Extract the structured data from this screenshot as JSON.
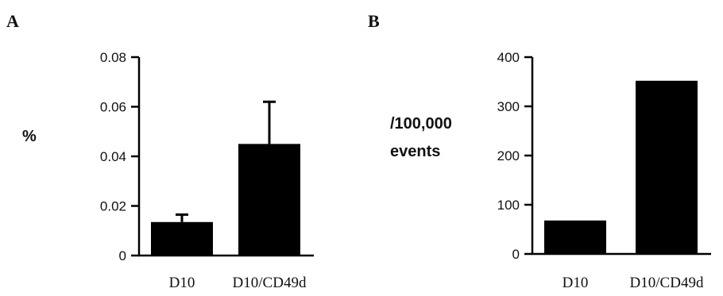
{
  "chart_data": [
    {
      "panel": "A",
      "type": "bar",
      "categories": [
        "D10",
        "D10/CD49d"
      ],
      "values": [
        0.0135,
        0.045
      ],
      "error_upper": [
        0.0165,
        0.062
      ],
      "ylabel": "%",
      "ylim": [
        0,
        0.08
      ],
      "yticks": [
        "0",
        "0.02",
        "0.04",
        "0.06",
        "0.08"
      ],
      "bar_color": "#000000"
    },
    {
      "panel": "B",
      "type": "bar",
      "categories": [
        "D10",
        "D10/CD49d"
      ],
      "values": [
        68,
        352
      ],
      "ylabel_lines": [
        "/100,000",
        "events"
      ],
      "ylim": [
        0,
        400
      ],
      "yticks": [
        "0",
        "100",
        "200",
        "300",
        "400"
      ],
      "bar_color": "#000000"
    }
  ]
}
